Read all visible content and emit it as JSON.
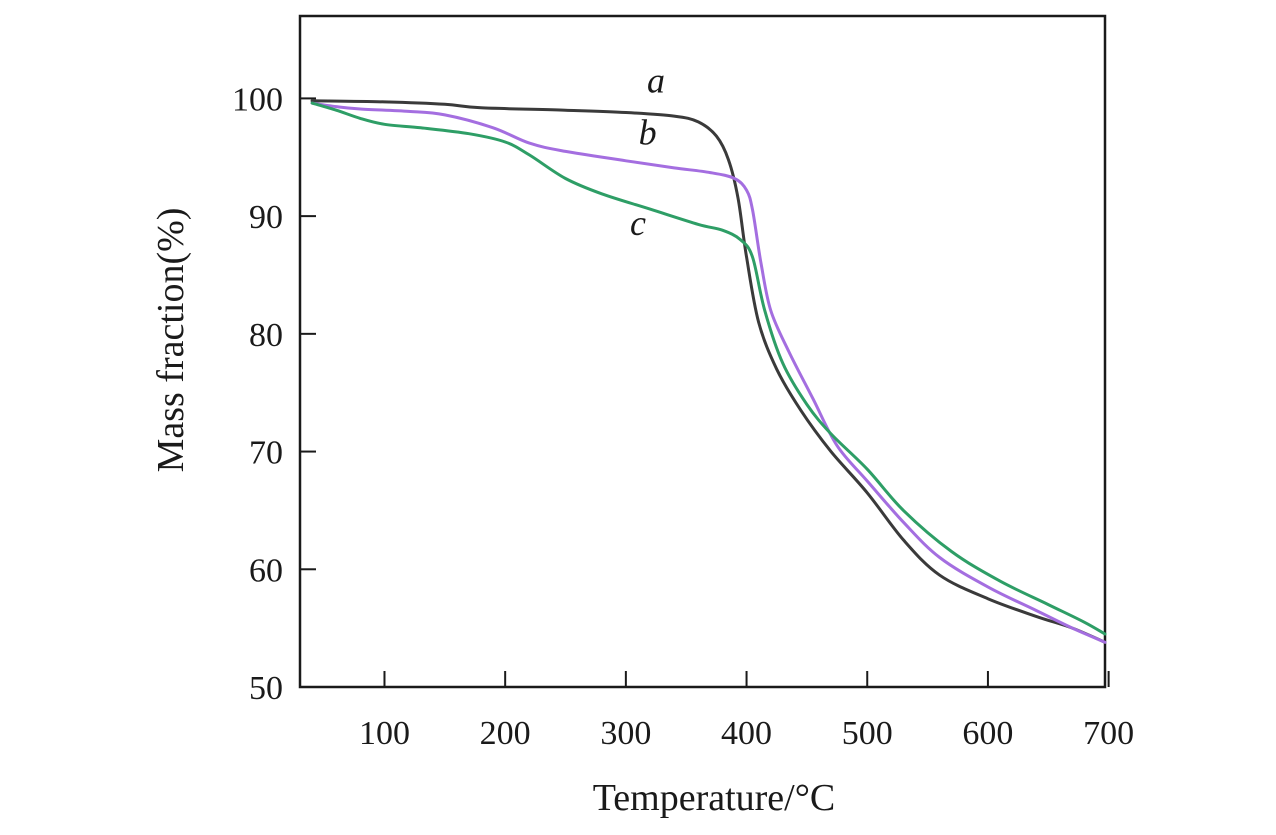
{
  "chart_data": {
    "type": "line",
    "title": "",
    "xlabel": "Temperature/°C",
    "ylabel": "Mass fraction(%)",
    "xlim": [
      30,
      697
    ],
    "ylim": [
      50,
      107
    ],
    "xticks": [
      100,
      200,
      300,
      400,
      500,
      600,
      700
    ],
    "yticks": [
      50,
      60,
      70,
      80,
      90,
      100
    ],
    "grid": false,
    "series": [
      {
        "name": "a",
        "color": "#3a3a3a",
        "points": [
          [
            40,
            99.8
          ],
          [
            100,
            99.7
          ],
          [
            150,
            99.5
          ],
          [
            180,
            99.2
          ],
          [
            250,
            99.0
          ],
          [
            300,
            98.8
          ],
          [
            340,
            98.5
          ],
          [
            360,
            98.0
          ],
          [
            375,
            96.8
          ],
          [
            385,
            94.8
          ],
          [
            393,
            91.5
          ],
          [
            400,
            86.5
          ],
          [
            410,
            81.0
          ],
          [
            425,
            77.0
          ],
          [
            445,
            73.5
          ],
          [
            470,
            70.0
          ],
          [
            500,
            66.5
          ],
          [
            530,
            62.5
          ],
          [
            560,
            59.5
          ],
          [
            600,
            57.5
          ],
          [
            640,
            56.0
          ],
          [
            670,
            55.0
          ],
          [
            697,
            53.8
          ]
        ]
      },
      {
        "name": "b",
        "color": "#a46ee0",
        "points": [
          [
            40,
            99.6
          ],
          [
            60,
            99.3
          ],
          [
            80,
            99.1
          ],
          [
            120,
            98.9
          ],
          [
            150,
            98.6
          ],
          [
            190,
            97.5
          ],
          [
            220,
            96.2
          ],
          [
            250,
            95.5
          ],
          [
            300,
            94.7
          ],
          [
            340,
            94.1
          ],
          [
            370,
            93.7
          ],
          [
            390,
            93.2
          ],
          [
            400,
            92.2
          ],
          [
            405,
            90.5
          ],
          [
            412,
            86.0
          ],
          [
            420,
            82.0
          ],
          [
            435,
            78.5
          ],
          [
            455,
            74.5
          ],
          [
            475,
            70.5
          ],
          [
            500,
            67.5
          ],
          [
            530,
            64.0
          ],
          [
            560,
            61.0
          ],
          [
            600,
            58.5
          ],
          [
            640,
            56.5
          ],
          [
            670,
            55.0
          ],
          [
            697,
            53.8
          ]
        ]
      },
      {
        "name": "c",
        "color": "#2e9e66",
        "points": [
          [
            40,
            99.6
          ],
          [
            60,
            99.0
          ],
          [
            80,
            98.3
          ],
          [
            100,
            97.8
          ],
          [
            130,
            97.5
          ],
          [
            170,
            97.0
          ],
          [
            200,
            96.3
          ],
          [
            220,
            95.2
          ],
          [
            250,
            93.2
          ],
          [
            280,
            91.9
          ],
          [
            320,
            90.6
          ],
          [
            360,
            89.3
          ],
          [
            380,
            88.8
          ],
          [
            395,
            88.0
          ],
          [
            405,
            86.5
          ],
          [
            415,
            82.0
          ],
          [
            430,
            77.5
          ],
          [
            450,
            74.0
          ],
          [
            470,
            71.5
          ],
          [
            500,
            68.5
          ],
          [
            530,
            65.0
          ],
          [
            570,
            61.5
          ],
          [
            610,
            59.0
          ],
          [
            650,
            57.0
          ],
          [
            680,
            55.5
          ],
          [
            697,
            54.5
          ]
        ]
      }
    ],
    "annotations": [
      {
        "text": "a",
        "x": 325,
        "y": 100.5
      },
      {
        "text": "b",
        "x": 318,
        "y": 96.1
      },
      {
        "text": "c",
        "x": 310,
        "y": 88.4
      }
    ]
  }
}
